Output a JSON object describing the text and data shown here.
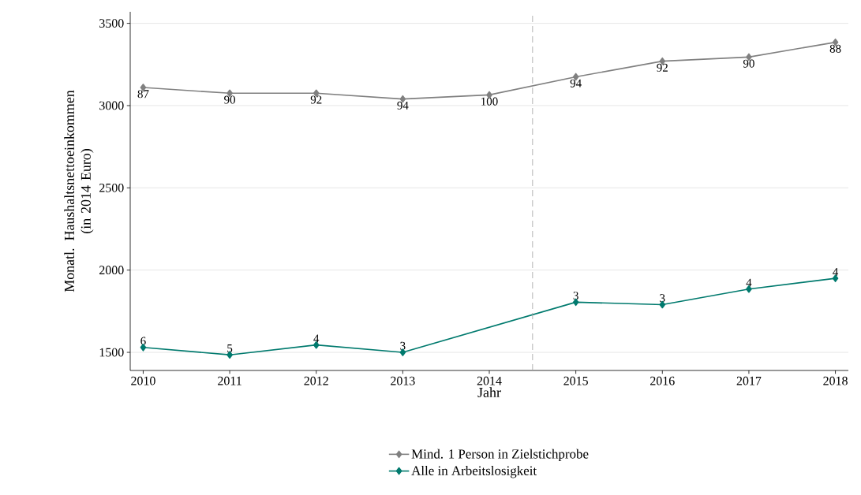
{
  "chart_data": {
    "type": "line",
    "xlabel": "Jahr",
    "ylabel": "Monatl. Haushaltsnettoeinkommen (in 2014 Euro)",
    "x": [
      2010,
      2011,
      2012,
      2013,
      2014,
      2015,
      2016,
      2017,
      2018
    ],
    "series": [
      {
        "name": "Mind. 1 Person in Zielstichprobe",
        "color": "#808080",
        "values": [
          3110,
          3075,
          3075,
          3040,
          3065,
          3175,
          3270,
          3295,
          3385
        ]
      },
      {
        "name": "Alle in Arbeitslosigkeit",
        "color": "#007a6e",
        "values": [
          1530,
          1485,
          1545,
          1500,
          null,
          1805,
          1790,
          1885,
          1950
        ]
      }
    ],
    "annotations": [
      {
        "text": "87",
        "x": 2010,
        "y": 3110
      },
      {
        "text": "90",
        "x": 2011,
        "y": 3075
      },
      {
        "text": "92",
        "x": 2012,
        "y": 3075
      },
      {
        "text": "94",
        "x": 2013,
        "y": 3040
      },
      {
        "text": "100",
        "x": 2014,
        "y": 3065
      },
      {
        "text": "94",
        "x": 2015,
        "y": 3175
      },
      {
        "text": "92",
        "x": 2016,
        "y": 3270
      },
      {
        "text": "90",
        "x": 2017,
        "y": 3295
      },
      {
        "text": "88",
        "x": 2018,
        "y": 3385
      },
      {
        "text": "6",
        "x": 2010,
        "y": 1530
      },
      {
        "text": "5",
        "x": 2011,
        "y": 1485
      },
      {
        "text": "4",
        "x": 2012,
        "y": 1545
      },
      {
        "text": "3",
        "x": 2013,
        "y": 1500
      },
      {
        "text": "3",
        "x": 2015,
        "y": 1805
      },
      {
        "text": "3",
        "x": 2016,
        "y": 1790
      },
      {
        "text": "4",
        "x": 2017,
        "y": 1885
      },
      {
        "text": "4",
        "x": 2018,
        "y": 1950
      }
    ],
    "xlim": [
      2009.85,
      2018.15
    ],
    "ylim": [
      1390,
      3570
    ],
    "xticks": [
      2010,
      2011,
      2012,
      2013,
      2014,
      2015,
      2016,
      2017,
      2018
    ],
    "yticks": [
      1500,
      2000,
      2500,
      3000,
      3500
    ],
    "ref_lines": [
      {
        "axis": "x",
        "value": 2014.5,
        "color": "#a0a0a0",
        "line_style": "dashed"
      }
    ],
    "grid": "y",
    "legend": "bottom",
    "marker": "diamond",
    "line_style": "solid"
  }
}
